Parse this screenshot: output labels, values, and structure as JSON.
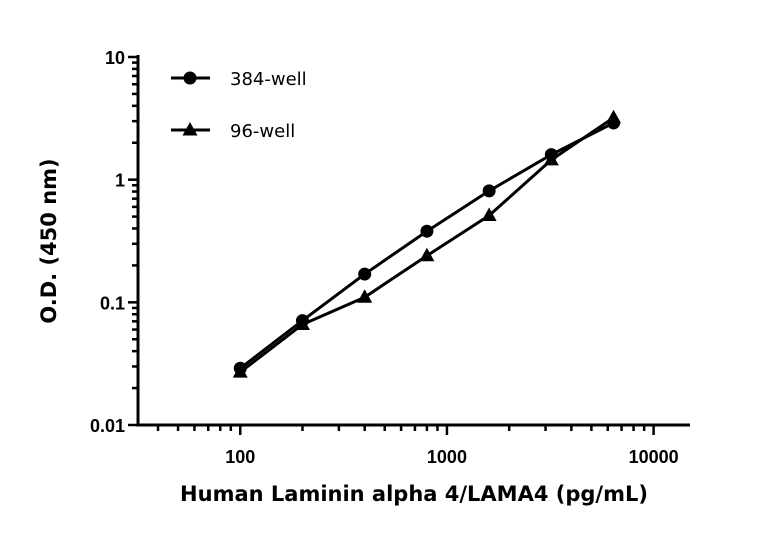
{
  "chart_data": {
    "type": "line",
    "title": "",
    "xlabel": "Human Laminin alpha 4/LAMA4 (pg/mL)",
    "ylabel": "O.D. (450 nm)",
    "xscale": "log",
    "yscale": "log",
    "xlim": [
      32,
      15000
    ],
    "ylim": [
      0.01,
      10
    ],
    "xticks": [
      100,
      1000,
      10000
    ],
    "xtick_labels": [
      "100",
      "1000",
      "10000"
    ],
    "yticks": [
      0.01,
      0.1,
      1,
      10
    ],
    "ytick_labels": [
      "0.01",
      "0.1",
      "1",
      "10"
    ],
    "grid": false,
    "legend_position": "top-left",
    "x": [
      100,
      200,
      400,
      800,
      1600,
      3200,
      6400
    ],
    "series": [
      {
        "name": "384-well",
        "marker": "circle",
        "values": [
          0.029,
          0.071,
          0.17,
          0.38,
          0.81,
          1.6,
          2.9
        ]
      },
      {
        "name": "96-well",
        "marker": "triangle",
        "values": [
          0.027,
          0.066,
          0.11,
          0.24,
          0.51,
          1.45,
          3.2
        ]
      }
    ],
    "color": "#000000"
  }
}
